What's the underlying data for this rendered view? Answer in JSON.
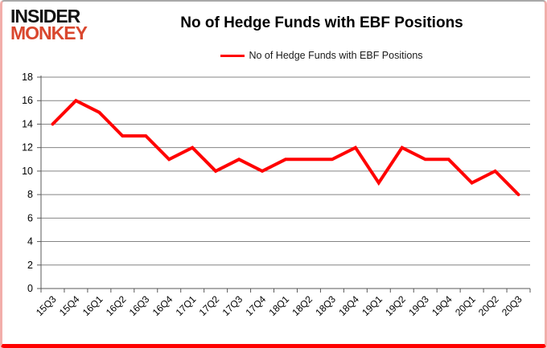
{
  "logo": {
    "line1": "INSIDER",
    "line2": "MONKEY"
  },
  "header": {
    "title": "No of Hedge Funds with EBF Positions"
  },
  "legend": {
    "label": "No of Hedge Funds with EBF Positions",
    "color": "#ff0000"
  },
  "chart_data": {
    "type": "line",
    "title": "No of Hedge Funds with EBF Positions",
    "categories": [
      "15Q3",
      "15Q4",
      "16Q1",
      "16Q2",
      "16Q3",
      "16Q4",
      "17Q1",
      "17Q2",
      "17Q3",
      "17Q4",
      "18Q1",
      "18Q2",
      "18Q3",
      "18Q4",
      "19Q1",
      "19Q2",
      "19Q3",
      "19Q4",
      "20Q1",
      "20Q2",
      "20Q3"
    ],
    "series": [
      {
        "name": "No of Hedge Funds with EBF Positions",
        "color": "#ff0000",
        "values": [
          14,
          16,
          15,
          13,
          13,
          11,
          12,
          10,
          11,
          10,
          11,
          11,
          11,
          12,
          9,
          12,
          11,
          11,
          9,
          10,
          8
        ]
      }
    ],
    "xlabel": "",
    "ylabel": "",
    "ylim": [
      0,
      18
    ],
    "ytick_step": 2,
    "grid": true,
    "legend_position": "top-center",
    "colors": {
      "line": "#ff0000",
      "gridline": "#848484",
      "axis": "#595959",
      "tick_text": "#000000"
    }
  }
}
